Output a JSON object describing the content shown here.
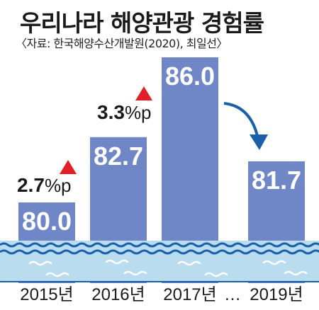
{
  "chart_data": {
    "type": "bar",
    "title": "우리나라 해양관광 경험률",
    "source": "〈자료: 한국해양수산개발원(2020), 최일선〉",
    "categories": [
      "2015년",
      "2016년",
      "2017년",
      "2019년"
    ],
    "values": [
      80.0,
      82.7,
      86.0,
      81.7
    ],
    "value_labels": [
      "80.0",
      "82.7",
      "86.0",
      "81.7"
    ],
    "axis_gap_label": "…",
    "changes": [
      {
        "number": "2.7",
        "unit": "%p",
        "direction": "up"
      },
      {
        "number": "3.3",
        "unit": "%p",
        "direction": "up"
      },
      null,
      {
        "direction": "down"
      }
    ],
    "colors": {
      "bar": "#6f87c7",
      "water": "#b9dcef",
      "wave": "#1a5fa8",
      "up_marker": "#e01f26",
      "down_arrow": "#1a5fa8"
    }
  }
}
